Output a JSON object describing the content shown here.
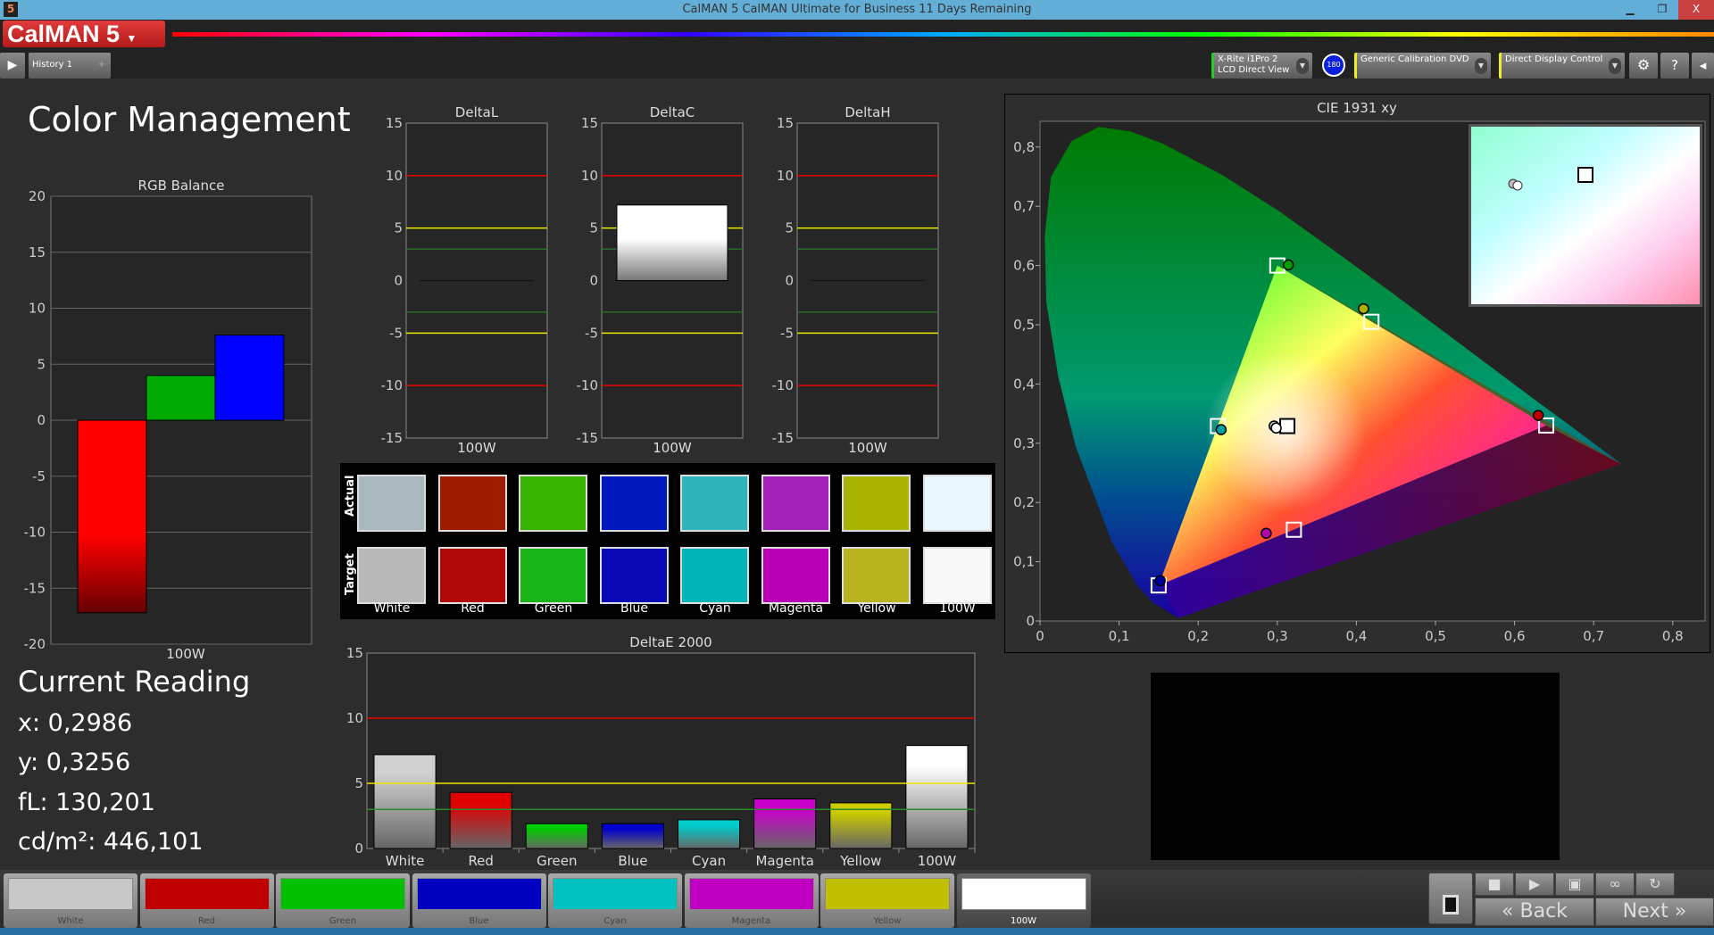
{
  "window": {
    "title": "CalMAN 5 CalMAN Ultimate for Business 11 Days Remaining",
    "icon": "5",
    "minimize": "▁",
    "restore": "❐",
    "close": "X"
  },
  "logo": "CalMAN 5",
  "toolbar": {
    "history_tab": "History 1",
    "add_tab": "+",
    "meter_line1": "X-Rite i1Pro 2",
    "meter_line2": "LCD Direct View",
    "badge": "180",
    "source": "Generic Calibration DVD",
    "display": "Direct Display Control",
    "settings_icon": "gear-icon",
    "help": "?",
    "collapse": "◂"
  },
  "page_title": "Color Management",
  "rgb_balance": {
    "type": "bar",
    "title": "RGB Balance",
    "categories": [
      "100W"
    ],
    "ylim": [
      -20,
      20
    ],
    "yticks": [
      20,
      15,
      10,
      5,
      0,
      -5,
      -10,
      -15,
      -20
    ],
    "series": [
      {
        "color": "#ff0000",
        "values": [
          -17.2
        ]
      },
      {
        "color": "#00aa00",
        "values": [
          4.0
        ]
      },
      {
        "color": "#0000ff",
        "values": [
          7.6
        ]
      }
    ]
  },
  "current_reading": {
    "title": "Current Reading",
    "x": "x: 0,2986",
    "y": "y: 0,3256",
    "fl": "fL: 130,201",
    "cdm2": "cd/m²: 446,101"
  },
  "chart_data": [
    {
      "type": "bar",
      "title": "DeltaL",
      "categories": [
        "100W"
      ],
      "values": [
        0
      ],
      "ylim": [
        -15,
        15
      ],
      "yticks": [
        15,
        10,
        5,
        0,
        -5,
        -10,
        -15
      ],
      "thresholds": {
        "red": 10,
        "yellow": 5,
        "green": 3
      }
    },
    {
      "type": "bar",
      "title": "DeltaC",
      "categories": [
        "100W"
      ],
      "values": [
        7.2
      ],
      "ylim": [
        -15,
        15
      ],
      "yticks": [
        15,
        10,
        5,
        0,
        -5,
        -10,
        -15
      ],
      "thresholds": {
        "red": 10,
        "yellow": 5,
        "green": 3
      }
    },
    {
      "type": "bar",
      "title": "DeltaH",
      "categories": [
        "100W"
      ],
      "values": [
        0
      ],
      "ylim": [
        -15,
        15
      ],
      "yticks": [
        15,
        10,
        5,
        0,
        -5,
        -10,
        -15
      ],
      "thresholds": {
        "red": 10,
        "yellow": 5,
        "green": 3
      }
    },
    {
      "type": "bar",
      "title": "DeltaE 2000",
      "categories": [
        "White",
        "Red",
        "Green",
        "Blue",
        "Cyan",
        "Magenta",
        "Yellow",
        "100W"
      ],
      "values": [
        7.2,
        4.3,
        1.9,
        1.9,
        2.2,
        3.8,
        3.5,
        7.9
      ],
      "colors": [
        "#d0d0d0",
        "#e00000",
        "#00cc00",
        "#0000cc",
        "#00cccc",
        "#cc00cc",
        "#cccc00",
        "#ffffff"
      ],
      "ylim": [
        0,
        15
      ],
      "yticks": [
        15,
        10,
        5,
        0
      ],
      "thresholds": {
        "red": 10,
        "yellow": 5,
        "green": 3
      }
    },
    {
      "type": "scatter",
      "title": "CIE 1931 xy",
      "xlim": [
        0,
        0.8
      ],
      "ylim": [
        0,
        0.8
      ],
      "xticks": [
        "0",
        "0,1",
        "0,2",
        "0,3",
        "0,4",
        "0,5",
        "0,6",
        "0,7",
        "0,8"
      ],
      "yticks": [
        "0",
        "0,1",
        "0,2",
        "0,3",
        "0,4",
        "0,5",
        "0,6",
        "0,7",
        "0,8"
      ],
      "targets": [
        {
          "name": "Red",
          "x": 0.64,
          "y": 0.33
        },
        {
          "name": "Green",
          "x": 0.3,
          "y": 0.6
        },
        {
          "name": "Blue",
          "x": 0.15,
          "y": 0.06
        },
        {
          "name": "Cyan",
          "x": 0.225,
          "y": 0.329
        },
        {
          "name": "Magenta",
          "x": 0.321,
          "y": 0.154
        },
        {
          "name": "Yellow",
          "x": 0.419,
          "y": 0.505
        },
        {
          "name": "White",
          "x": 0.3127,
          "y": 0.329
        }
      ],
      "actual": [
        {
          "name": "Red",
          "x": 0.63,
          "y": 0.347,
          "color": "#c00000"
        },
        {
          "name": "Green",
          "x": 0.314,
          "y": 0.601,
          "color": "#00a000"
        },
        {
          "name": "Blue",
          "x": 0.152,
          "y": 0.068,
          "color": "#0000a0"
        },
        {
          "name": "Cyan",
          "x": 0.229,
          "y": 0.323,
          "color": "#00a0a0"
        },
        {
          "name": "Magenta",
          "x": 0.286,
          "y": 0.148,
          "color": "#b000b0"
        },
        {
          "name": "Yellow",
          "x": 0.409,
          "y": 0.527,
          "color": "#b0b000"
        },
        {
          "name": "White-prev",
          "x": 0.296,
          "y": 0.329,
          "color": "#bbbbbb"
        },
        {
          "name": "White",
          "x": 0.2986,
          "y": 0.3256,
          "color": "#ffffff"
        }
      ]
    }
  ],
  "swatches": {
    "row_labels": [
      "Actual",
      "Target"
    ],
    "labels": [
      "White",
      "Red",
      "Green",
      "Blue",
      "Cyan",
      "Magenta",
      "Yellow",
      "100W"
    ],
    "actual": [
      "#a8b8bc",
      "#a01c00",
      "#38b400",
      "#0018bc",
      "#30b4bc",
      "#a020b8",
      "#a8b400",
      "#e8f8fc"
    ],
    "target": [
      "#b8b8b8",
      "#b00808",
      "#18b418",
      "#0808b4",
      "#00b4b8",
      "#b800b4",
      "#b8b420",
      "#f8f8f8"
    ]
  },
  "bottom_swatches": [
    {
      "label": "White",
      "color": "#c8c8c8"
    },
    {
      "label": "Red",
      "color": "#c00000"
    },
    {
      "label": "Green",
      "color": "#00c000"
    },
    {
      "label": "Blue",
      "color": "#0000c0"
    },
    {
      "label": "Cyan",
      "color": "#00c0c0"
    },
    {
      "label": "Magenta",
      "color": "#c000c0"
    },
    {
      "label": "Yellow",
      "color": "#c0c000"
    },
    {
      "label": "100W",
      "color": "#ffffff"
    }
  ],
  "nav": {
    "back": "Back",
    "next": "Next",
    "back_icon": "«",
    "next_icon": "»"
  }
}
